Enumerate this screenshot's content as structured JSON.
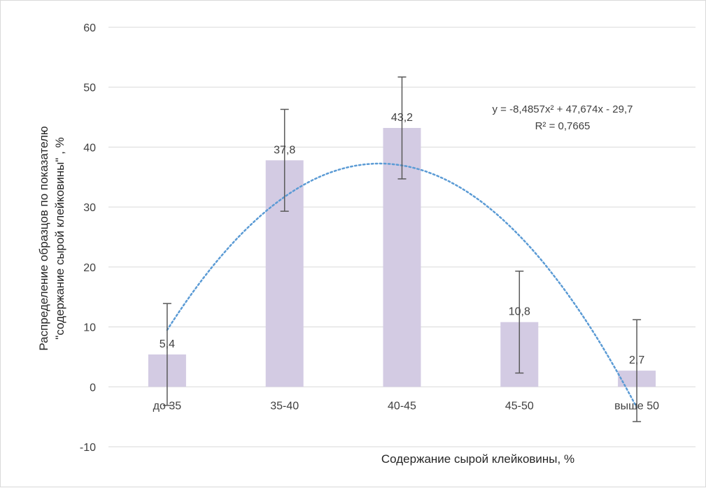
{
  "chart_data": {
    "type": "bar",
    "categories": [
      "до 35",
      "35-40",
      "40-45",
      "45-50",
      "выше 50"
    ],
    "values": [
      5.4,
      37.8,
      43.2,
      10.8,
      2.7
    ],
    "value_labels": [
      "5,4",
      "37,8",
      "43,2",
      "10,8",
      "2,7"
    ],
    "error_bars": [
      {
        "low": -3.1,
        "high": 13.9
      },
      {
        "low": 29.3,
        "high": 46.3
      },
      {
        "low": 34.7,
        "high": 51.7
      },
      {
        "low": 2.3,
        "high": 19.3
      },
      {
        "low": -5.8,
        "high": 11.2
      }
    ],
    "trendline": {
      "type": "polynomial",
      "order": 2,
      "coefficients": {
        "a": -8.4857,
        "b": 47.674,
        "c": -29.7
      },
      "equation": "y = -8,4857x² + 47,674x - 29,7",
      "r_squared": "R² = 0,7665",
      "style": "dotted"
    },
    "xlabel": "Содержание сырой клейковины, %",
    "ylabel_line1": "Распределение образцов по показателю",
    "ylabel_line2": "\"содержание сырой клейковины\" , %",
    "ylim": [
      -10,
      60
    ],
    "yticks": [
      -10,
      0,
      10,
      20,
      30,
      40,
      50,
      60
    ],
    "grid": true,
    "legend": "none",
    "colors": {
      "bar": "#d3cbe3",
      "error_bar": "#595959",
      "trendline": "#5b9bd5",
      "grid": "#d9d9d9",
      "text": "#404040"
    }
  }
}
